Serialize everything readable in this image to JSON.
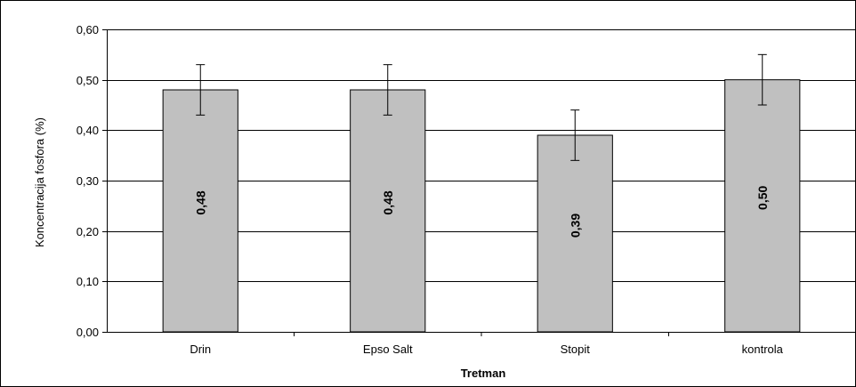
{
  "chart_data": {
    "type": "bar",
    "categories": [
      "Drin",
      "Epso Salt",
      "Stopit",
      "kontrola"
    ],
    "values": [
      0.48,
      0.48,
      0.39,
      0.5
    ],
    "data_labels": [
      "0,48",
      "0,48",
      "0,39",
      "0,50"
    ],
    "error_bars": [
      {
        "low": 0.43,
        "high": 0.53
      },
      {
        "low": 0.43,
        "high": 0.53
      },
      {
        "low": 0.34,
        "high": 0.44
      },
      {
        "low": 0.45,
        "high": 0.55
      }
    ],
    "ylim": [
      0,
      0.6
    ],
    "yticks": [
      0,
      0.1,
      0.2,
      0.3,
      0.4,
      0.5,
      0.6
    ],
    "ytick_labels": [
      "0,00",
      "0,10",
      "0,20",
      "0,30",
      "0,40",
      "0,50",
      "0,60"
    ],
    "xlabel": "Tretman",
    "ylabel": "Koncentracija fosfora (%)",
    "title": "",
    "grid": true,
    "legend": false,
    "colors": {
      "bar_fill": "#c0c0c0",
      "bar_stroke": "#000000",
      "grid": "#000000",
      "border": "#000000"
    }
  }
}
